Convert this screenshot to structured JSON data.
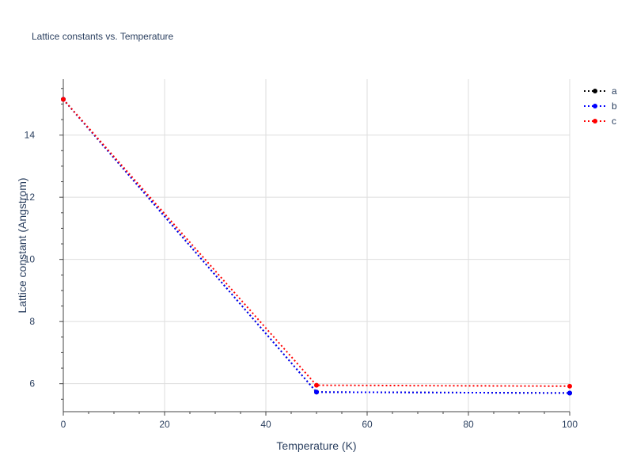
{
  "chart_data": {
    "type": "line",
    "title": "Lattice constants vs. Temperature",
    "xlabel": "Temperature (K)",
    "ylabel": "Lattice constant (Angstrom)",
    "x": [
      0,
      50,
      100
    ],
    "xlim": [
      0,
      100
    ],
    "ylim": [
      5.1,
      15.8
    ],
    "xticks": [
      0,
      20,
      40,
      60,
      80,
      100
    ],
    "yticks": [
      6,
      8,
      10,
      12,
      14
    ],
    "xtick_labels": [
      "0",
      "20",
      "40",
      "60",
      "80",
      "100"
    ],
    "ytick_labels": [
      "6",
      "8",
      "10",
      "12",
      "14"
    ],
    "grid": true,
    "legend_position": "top-right",
    "series": [
      {
        "name": "a",
        "values": [
          15.15,
          5.73,
          5.7
        ],
        "color": "#000000"
      },
      {
        "name": "b",
        "values": [
          15.15,
          5.73,
          5.7
        ],
        "color": "#0000ff"
      },
      {
        "name": "c",
        "values": [
          15.15,
          5.95,
          5.92
        ],
        "color": "#ff0000"
      }
    ]
  }
}
